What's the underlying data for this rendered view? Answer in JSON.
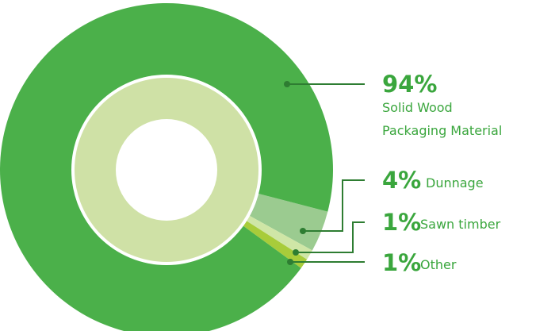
{
  "chart_data": {
    "type": "pie",
    "categories": [
      "Solid Wood Packaging Material",
      "Dunnage",
      "Sawn timber",
      "Other"
    ],
    "values": [
      94,
      4,
      1,
      1
    ],
    "unit": "%",
    "colors": [
      "#4bb04a",
      "#9bcb90",
      "#cfe6a6",
      "#a8cc3a"
    ],
    "inner_ring_color": "#cfe1a6",
    "callout_color": "#2e7d32",
    "labels": [
      {
        "pct": "94%",
        "text_lines": [
          "Solid Wood",
          "Packaging Material"
        ]
      },
      {
        "pct": "4%",
        "text_lines": [
          "Dunnage"
        ]
      },
      {
        "pct": "1%",
        "text_lines": [
          "Sawn timber"
        ]
      },
      {
        "pct": "1%",
        "text_lines": [
          "Other"
        ]
      }
    ]
  }
}
